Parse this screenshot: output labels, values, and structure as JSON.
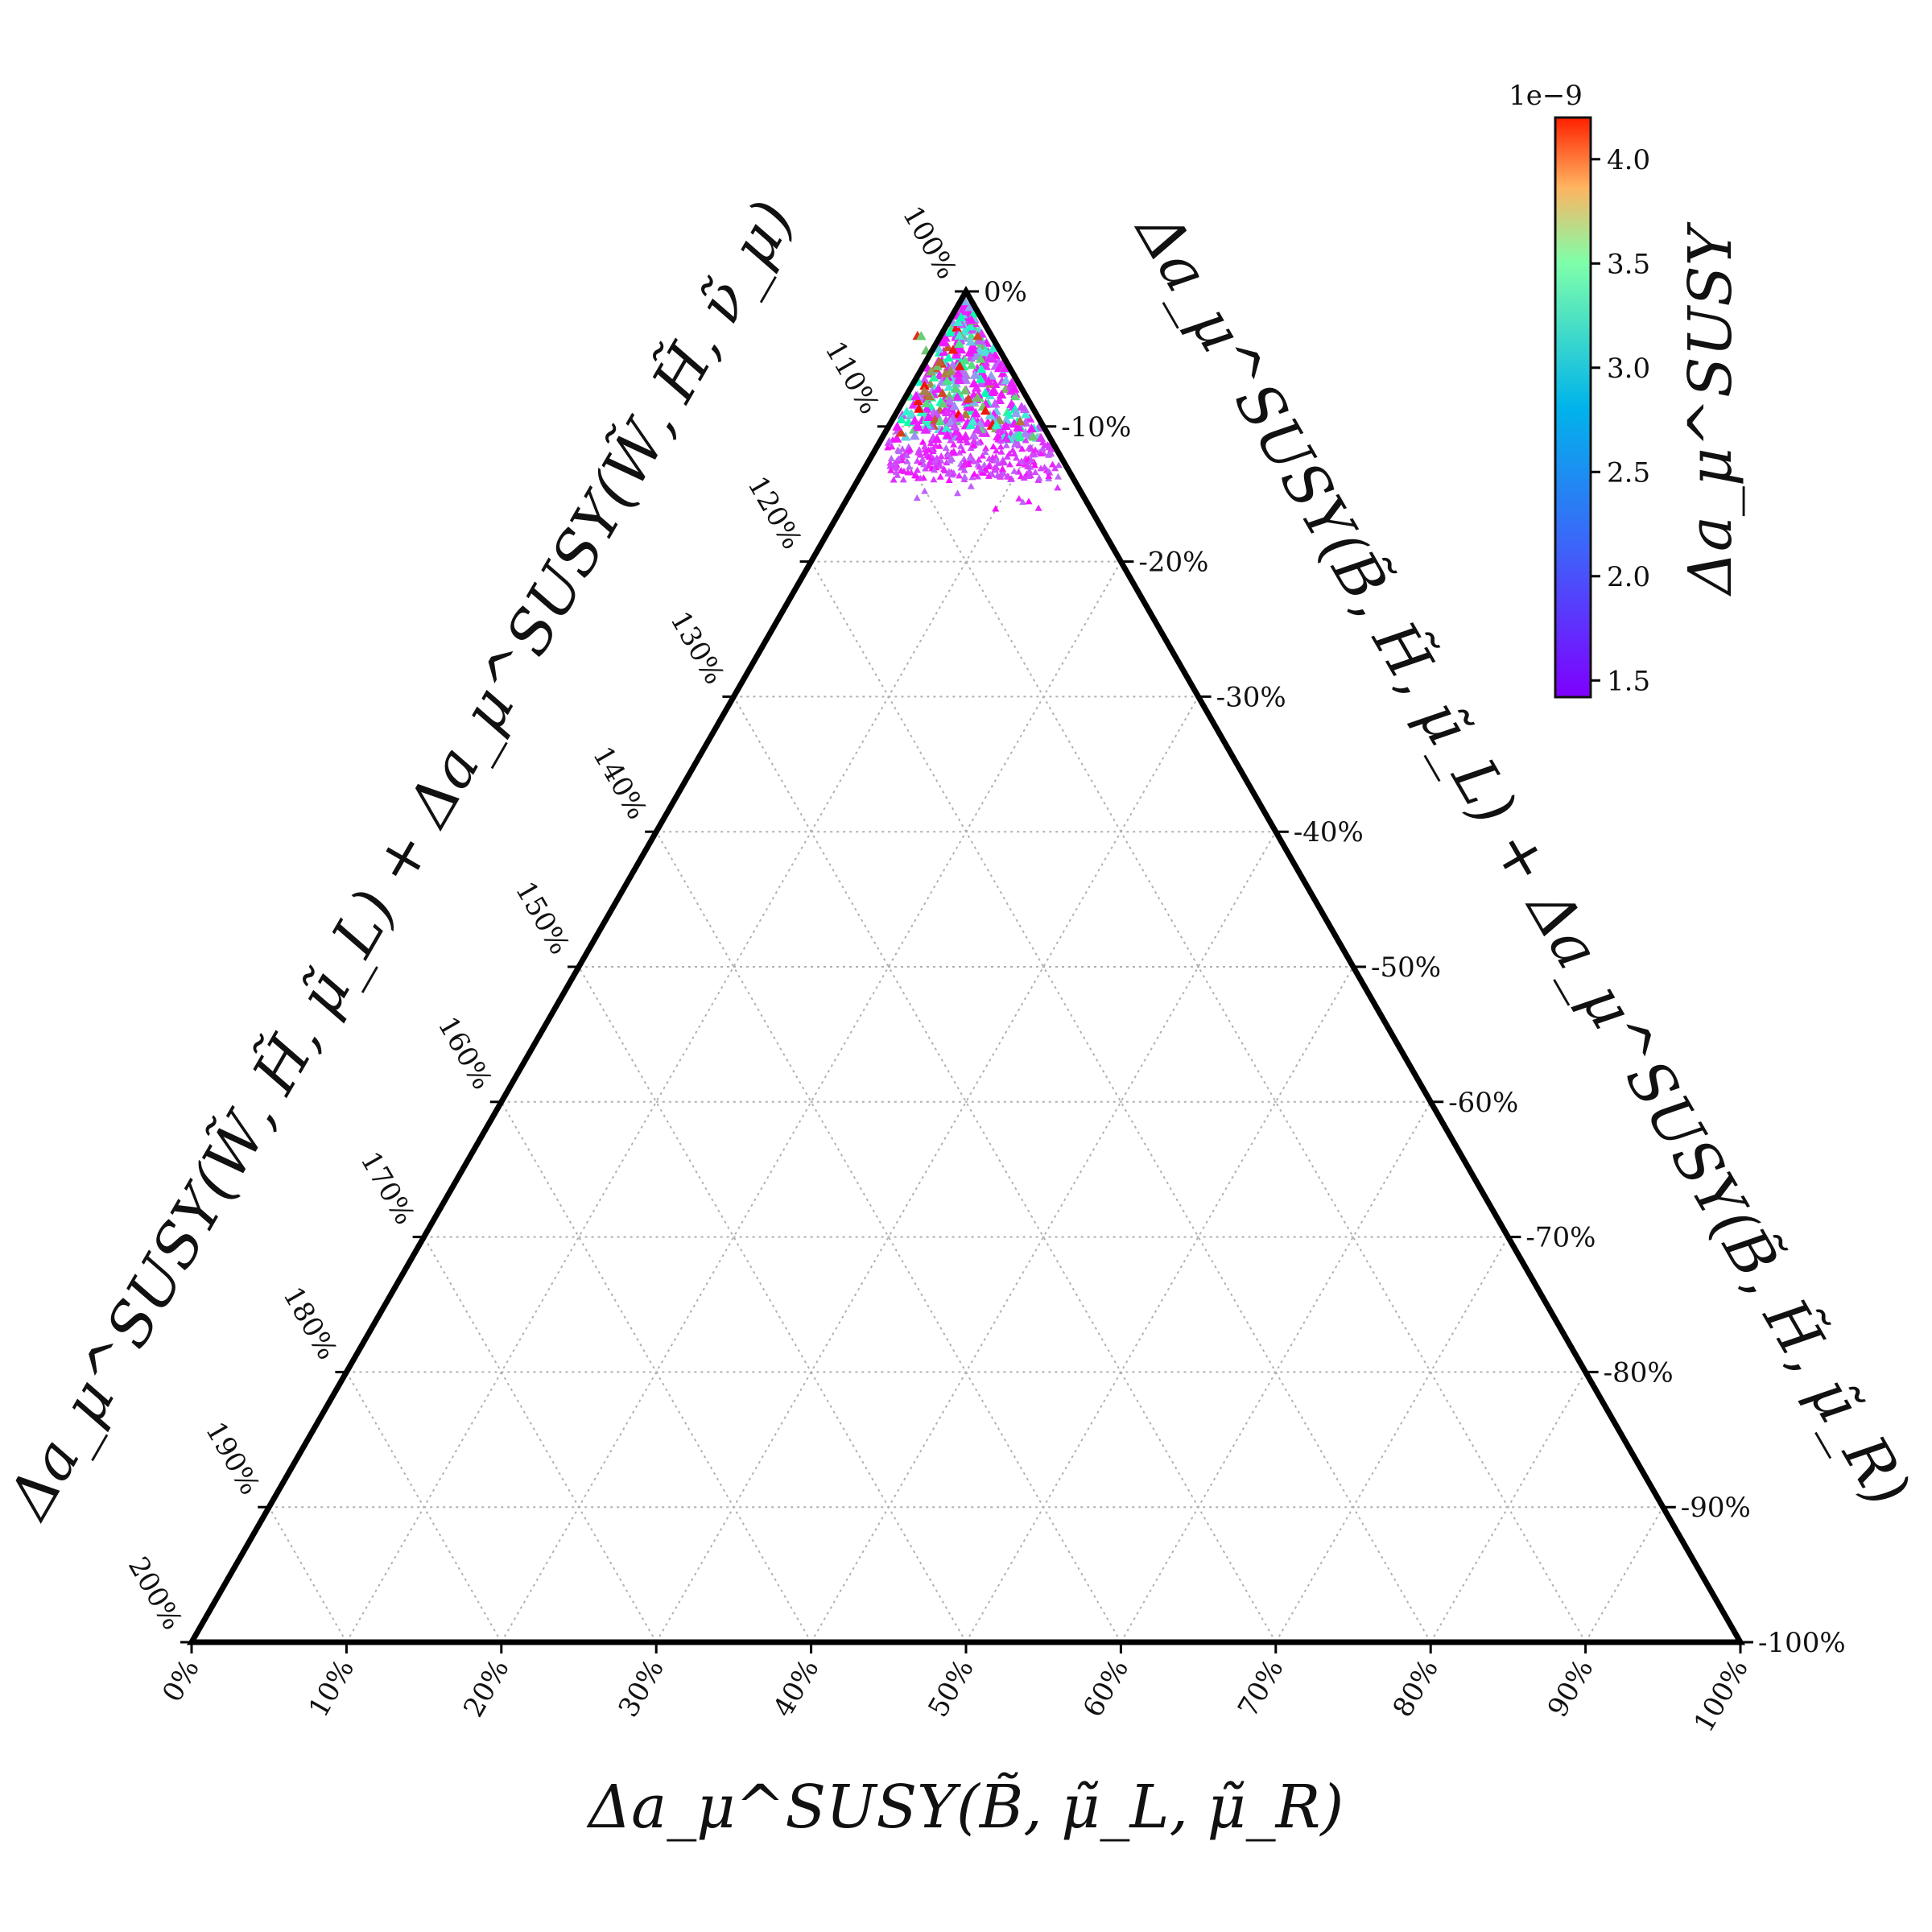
{
  "chart_data": {
    "type": "scatter",
    "subtype": "ternary",
    "marker": "triangle",
    "axes": {
      "bottom": {
        "label": "Δa_μ^SUSY(B̃, μ̃_L, μ̃_R)",
        "ticks": [
          "0%",
          "10%",
          "20%",
          "30%",
          "40%",
          "50%",
          "60%",
          "70%",
          "80%",
          "90%",
          "100%"
        ]
      },
      "left": {
        "label": "Δa_μ^SUSY(W̃, H̃, μ̃_L) + Δa_μ^SUSY(W̃, H̃, ν̃_μ)",
        "ticks": [
          "200%",
          "190%",
          "180%",
          "170%",
          "160%",
          "150%",
          "140%",
          "130%",
          "120%",
          "110%",
          "100%"
        ]
      },
      "right": {
        "label": "Δa_μ^SUSY(B̃, H̃, μ̃_L) + Δa_μ^SUSY(B̃, H̃, μ̃_R)",
        "ticks": [
          "0%",
          "-10%",
          "-20%",
          "-30%",
          "-40%",
          "-50%",
          "-60%",
          "-70%",
          "-80%",
          "-90%",
          "-100%"
        ]
      }
    },
    "grid": true,
    "colorbar": {
      "label": "Δa_μ^SUSY",
      "exponent": "1e−9",
      "ticks": [
        "1.5",
        "2.0",
        "2.5",
        "3.0",
        "3.5",
        "4.0"
      ],
      "range": [
        1.42,
        4.2
      ],
      "colormap": "rainbow"
    },
    "region_summary": {
      "bottom_range_percent": [
        -6,
        8
      ],
      "right_range_percent": [
        0,
        -16
      ],
      "color_range_1e-9": [
        1.45,
        4.2
      ]
    }
  }
}
